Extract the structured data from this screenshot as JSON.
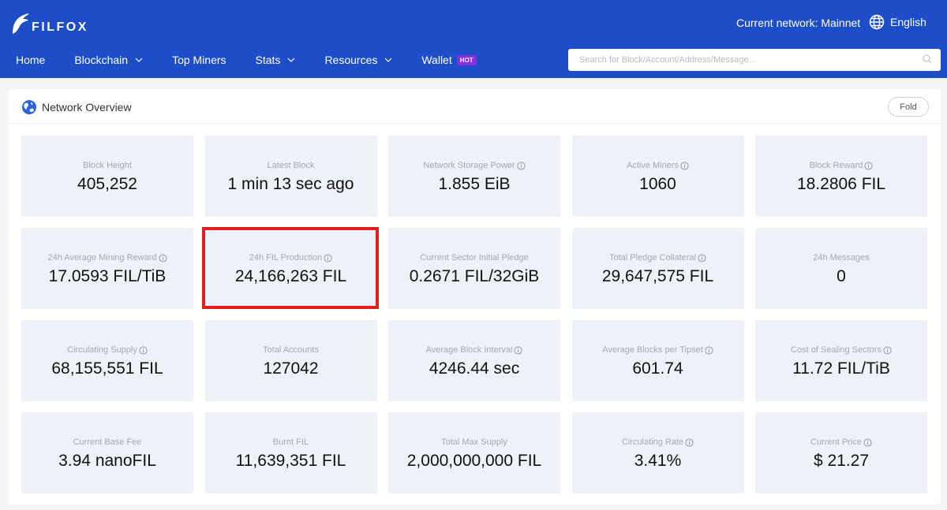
{
  "header": {
    "brand": "FILFOX",
    "network": "Current network: Mainnet",
    "language": "English",
    "nav": [
      {
        "label": "Home",
        "dropdown": false
      },
      {
        "label": "Blockchain",
        "dropdown": true
      },
      {
        "label": "Top Miners",
        "dropdown": false
      },
      {
        "label": "Stats",
        "dropdown": true
      },
      {
        "label": "Resources",
        "dropdown": true
      },
      {
        "label": "Wallet",
        "dropdown": false,
        "badge": "HOT"
      }
    ],
    "search_placeholder": "Search for Block/Account/Address/Message..."
  },
  "overview": {
    "title": "Network Overview",
    "fold_label": "Fold",
    "cards": [
      {
        "label": "Block Height",
        "value": "405,252",
        "info": false
      },
      {
        "label": "Latest Block",
        "value": "1 min 13 sec ago",
        "info": false
      },
      {
        "label": "Network Storage Power",
        "value": "1.855 EiB",
        "info": true
      },
      {
        "label": "Active Miners",
        "value": "1060",
        "info": true
      },
      {
        "label": "Block Reward",
        "value": "18.2806 FIL",
        "info": true
      },
      {
        "label": "24h Average Mining Reward",
        "value": "17.0593 FIL/TiB",
        "info": true
      },
      {
        "label": "24h FIL Production",
        "value": "24,166,263 FIL",
        "info": true
      },
      {
        "label": "Current Sector Initial Pledge",
        "value": "0.2671 FIL/32GiB",
        "info": false
      },
      {
        "label": "Total Pledge Collateral",
        "value": "29,647,575 FIL",
        "info": true
      },
      {
        "label": "24h Messages",
        "value": "0",
        "info": false
      },
      {
        "label": "Circulating Supply",
        "value": "68,155,551 FIL",
        "info": true
      },
      {
        "label": "Total Accounts",
        "value": "127042",
        "info": false
      },
      {
        "label": "Average Block Interval",
        "value": "4246.44 sec",
        "info": true
      },
      {
        "label": "Average Blocks per Tipset",
        "value": "601.74",
        "info": true
      },
      {
        "label": "Cost of Sealing Sectors",
        "value": "11.72 FIL/TiB",
        "info": true
      },
      {
        "label": "Current Base Fee",
        "value": "3.94 nanoFIL",
        "info": false
      },
      {
        "label": "Burnt FIL",
        "value": "11,639,351 FIL",
        "info": false
      },
      {
        "label": "Total Max Supply",
        "value": "2,000,000,000 FIL",
        "info": false
      },
      {
        "label": "Circulating Rate",
        "value": "3.41%",
        "info": true
      },
      {
        "label": "Current Price",
        "value": "$ 21.27",
        "info": true
      }
    ]
  },
  "colors": {
    "header_bg": "#1d4ec8",
    "card_bg": "#eef1f7",
    "highlight": "#e0201c",
    "hot_badge": "#8a2be2"
  }
}
